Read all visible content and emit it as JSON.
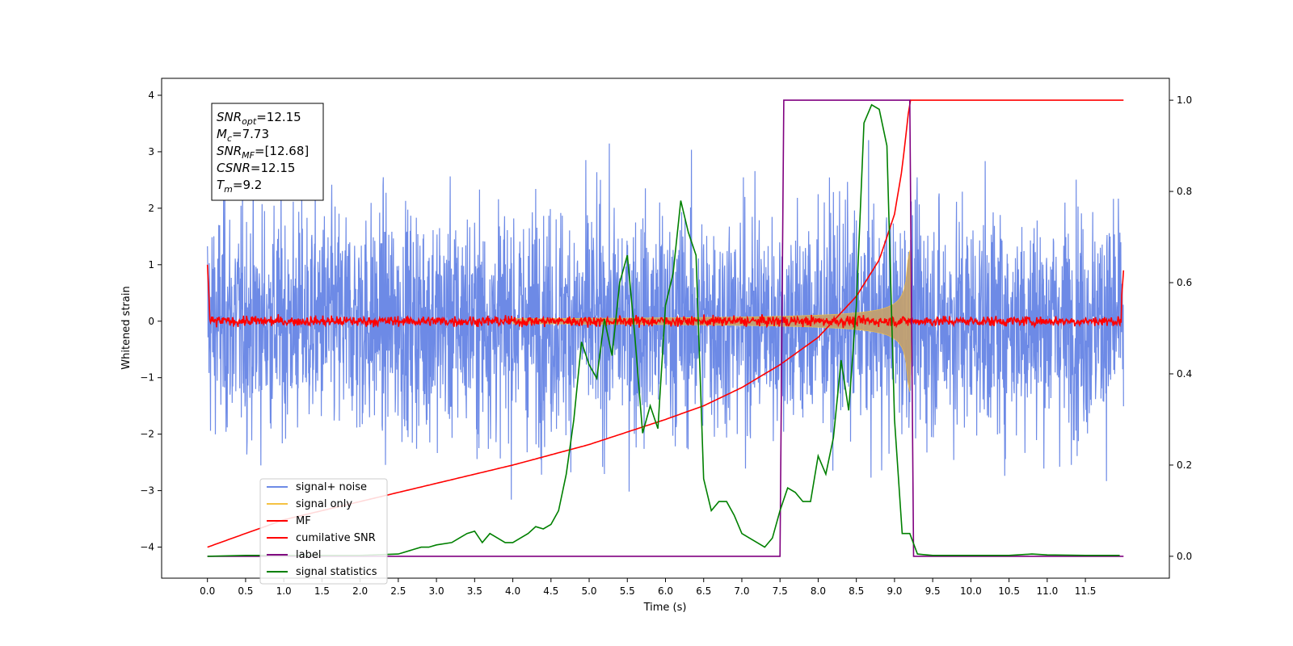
{
  "chart_data": {
    "type": "line",
    "title": "",
    "xlabel": "Time (s)",
    "ylabel": "Whitened strain",
    "xlim": [
      -0.6,
      12.6
    ],
    "ylim": [
      -4.55,
      4.3
    ],
    "y2lim": [
      -0.048,
      1.048
    ],
    "xticks": [
      "0.0",
      "0.5",
      "1.0",
      "1.5",
      "2.0",
      "2.5",
      "3.0",
      "3.5",
      "4.0",
      "4.5",
      "5.0",
      "5.5",
      "6.0",
      "6.5",
      "7.0",
      "7.5",
      "8.0",
      "8.5",
      "9.0",
      "9.5",
      "10.0",
      "10.5",
      "11.0",
      "11.5"
    ],
    "yticks": [
      "4",
      "3",
      "2",
      "1",
      "0",
      "−1",
      "−2",
      "−3",
      "−4"
    ],
    "y2ticks": [
      "1.0",
      "0.8",
      "0.6",
      "0.4",
      "0.2",
      "0.0"
    ],
    "legend_position": "lower-left",
    "annotation_lines": [
      {
        "sym": "SNR",
        "sub": "opt",
        "val": "=12.15"
      },
      {
        "sym": "M",
        "sub": "c",
        "val": "=7.73"
      },
      {
        "sym": "SNR",
        "sub": "MF",
        "val": "=[12.68]"
      },
      {
        "sym": "CSNR",
        "sub": "",
        "val": "=12.15"
      },
      {
        "sym": "T",
        "sub": "m",
        "val": "=9.2"
      }
    ],
    "series": [
      {
        "name": "signal+ noise",
        "color": "#6d8ae6",
        "axis": "left",
        "kind": "noise",
        "amplitude": 1.0,
        "x_range": [
          0,
          12
        ]
      },
      {
        "name": "signal only",
        "color": "#f5c242",
        "axis": "left",
        "kind": "chirp",
        "merger_time": 9.2,
        "peak_amplitude": 1.3
      },
      {
        "name": "MF",
        "color": "#ff0000",
        "axis": "left",
        "kind": "mf",
        "amplitude": 0.1
      },
      {
        "name": "cumilative SNR",
        "color": "#ff0000",
        "axis": "right",
        "x": [
          0,
          1,
          2,
          3,
          4,
          5,
          6,
          6.5,
          7,
          7.5,
          8,
          8.5,
          8.8,
          9.0,
          9.1,
          9.2,
          12
        ],
        "values": [
          0.02,
          0.08,
          0.12,
          0.16,
          0.2,
          0.245,
          0.3,
          0.33,
          0.37,
          0.42,
          0.48,
          0.57,
          0.65,
          0.75,
          0.85,
          1.0,
          1.0
        ]
      },
      {
        "name": "label",
        "color": "#800080",
        "axis": "right",
        "x": [
          0,
          7.5,
          7.55,
          9.2,
          9.25,
          12
        ],
        "values": [
          0,
          0,
          1,
          1,
          0,
          0
        ]
      },
      {
        "name": "signal statistics",
        "color": "#008000",
        "axis": "right",
        "x": [
          0,
          0.5,
          1,
          1.5,
          2,
          2.5,
          2.7,
          2.8,
          2.9,
          3.0,
          3.2,
          3.3,
          3.4,
          3.5,
          3.6,
          3.7,
          3.8,
          3.9,
          4.0,
          4.1,
          4.2,
          4.3,
          4.4,
          4.5,
          4.6,
          4.7,
          4.8,
          4.9,
          5.0,
          5.1,
          5.2,
          5.3,
          5.4,
          5.5,
          5.6,
          5.7,
          5.8,
          5.9,
          6.0,
          6.1,
          6.2,
          6.3,
          6.4,
          6.5,
          6.6,
          6.7,
          6.8,
          6.9,
          7.0,
          7.1,
          7.2,
          7.3,
          7.4,
          7.5,
          7.6,
          7.7,
          7.8,
          7.9,
          8.0,
          8.1,
          8.2,
          8.3,
          8.4,
          8.5,
          8.6,
          8.7,
          8.8,
          8.9,
          9.0,
          9.1,
          9.2,
          9.3,
          9.5,
          10,
          10.5,
          10.8,
          11,
          11.5,
          11.95
        ],
        "values": [
          0,
          0.002,
          0.002,
          0.002,
          0.002,
          0.005,
          0.015,
          0.02,
          0.02,
          0.025,
          0.03,
          0.04,
          0.05,
          0.055,
          0.03,
          0.05,
          0.04,
          0.03,
          0.03,
          0.04,
          0.05,
          0.065,
          0.06,
          0.07,
          0.1,
          0.18,
          0.3,
          0.47,
          0.42,
          0.39,
          0.52,
          0.44,
          0.6,
          0.66,
          0.48,
          0.27,
          0.33,
          0.28,
          0.55,
          0.62,
          0.78,
          0.71,
          0.66,
          0.17,
          0.1,
          0.12,
          0.12,
          0.09,
          0.05,
          0.04,
          0.03,
          0.02,
          0.04,
          0.1,
          0.15,
          0.14,
          0.12,
          0.12,
          0.22,
          0.18,
          0.26,
          0.43,
          0.32,
          0.55,
          0.95,
          0.99,
          0.98,
          0.9,
          0.3,
          0.05,
          0.05,
          0.005,
          0.002,
          0.002,
          0.002,
          0.005,
          0.003,
          0.002,
          0.002
        ]
      }
    ]
  }
}
